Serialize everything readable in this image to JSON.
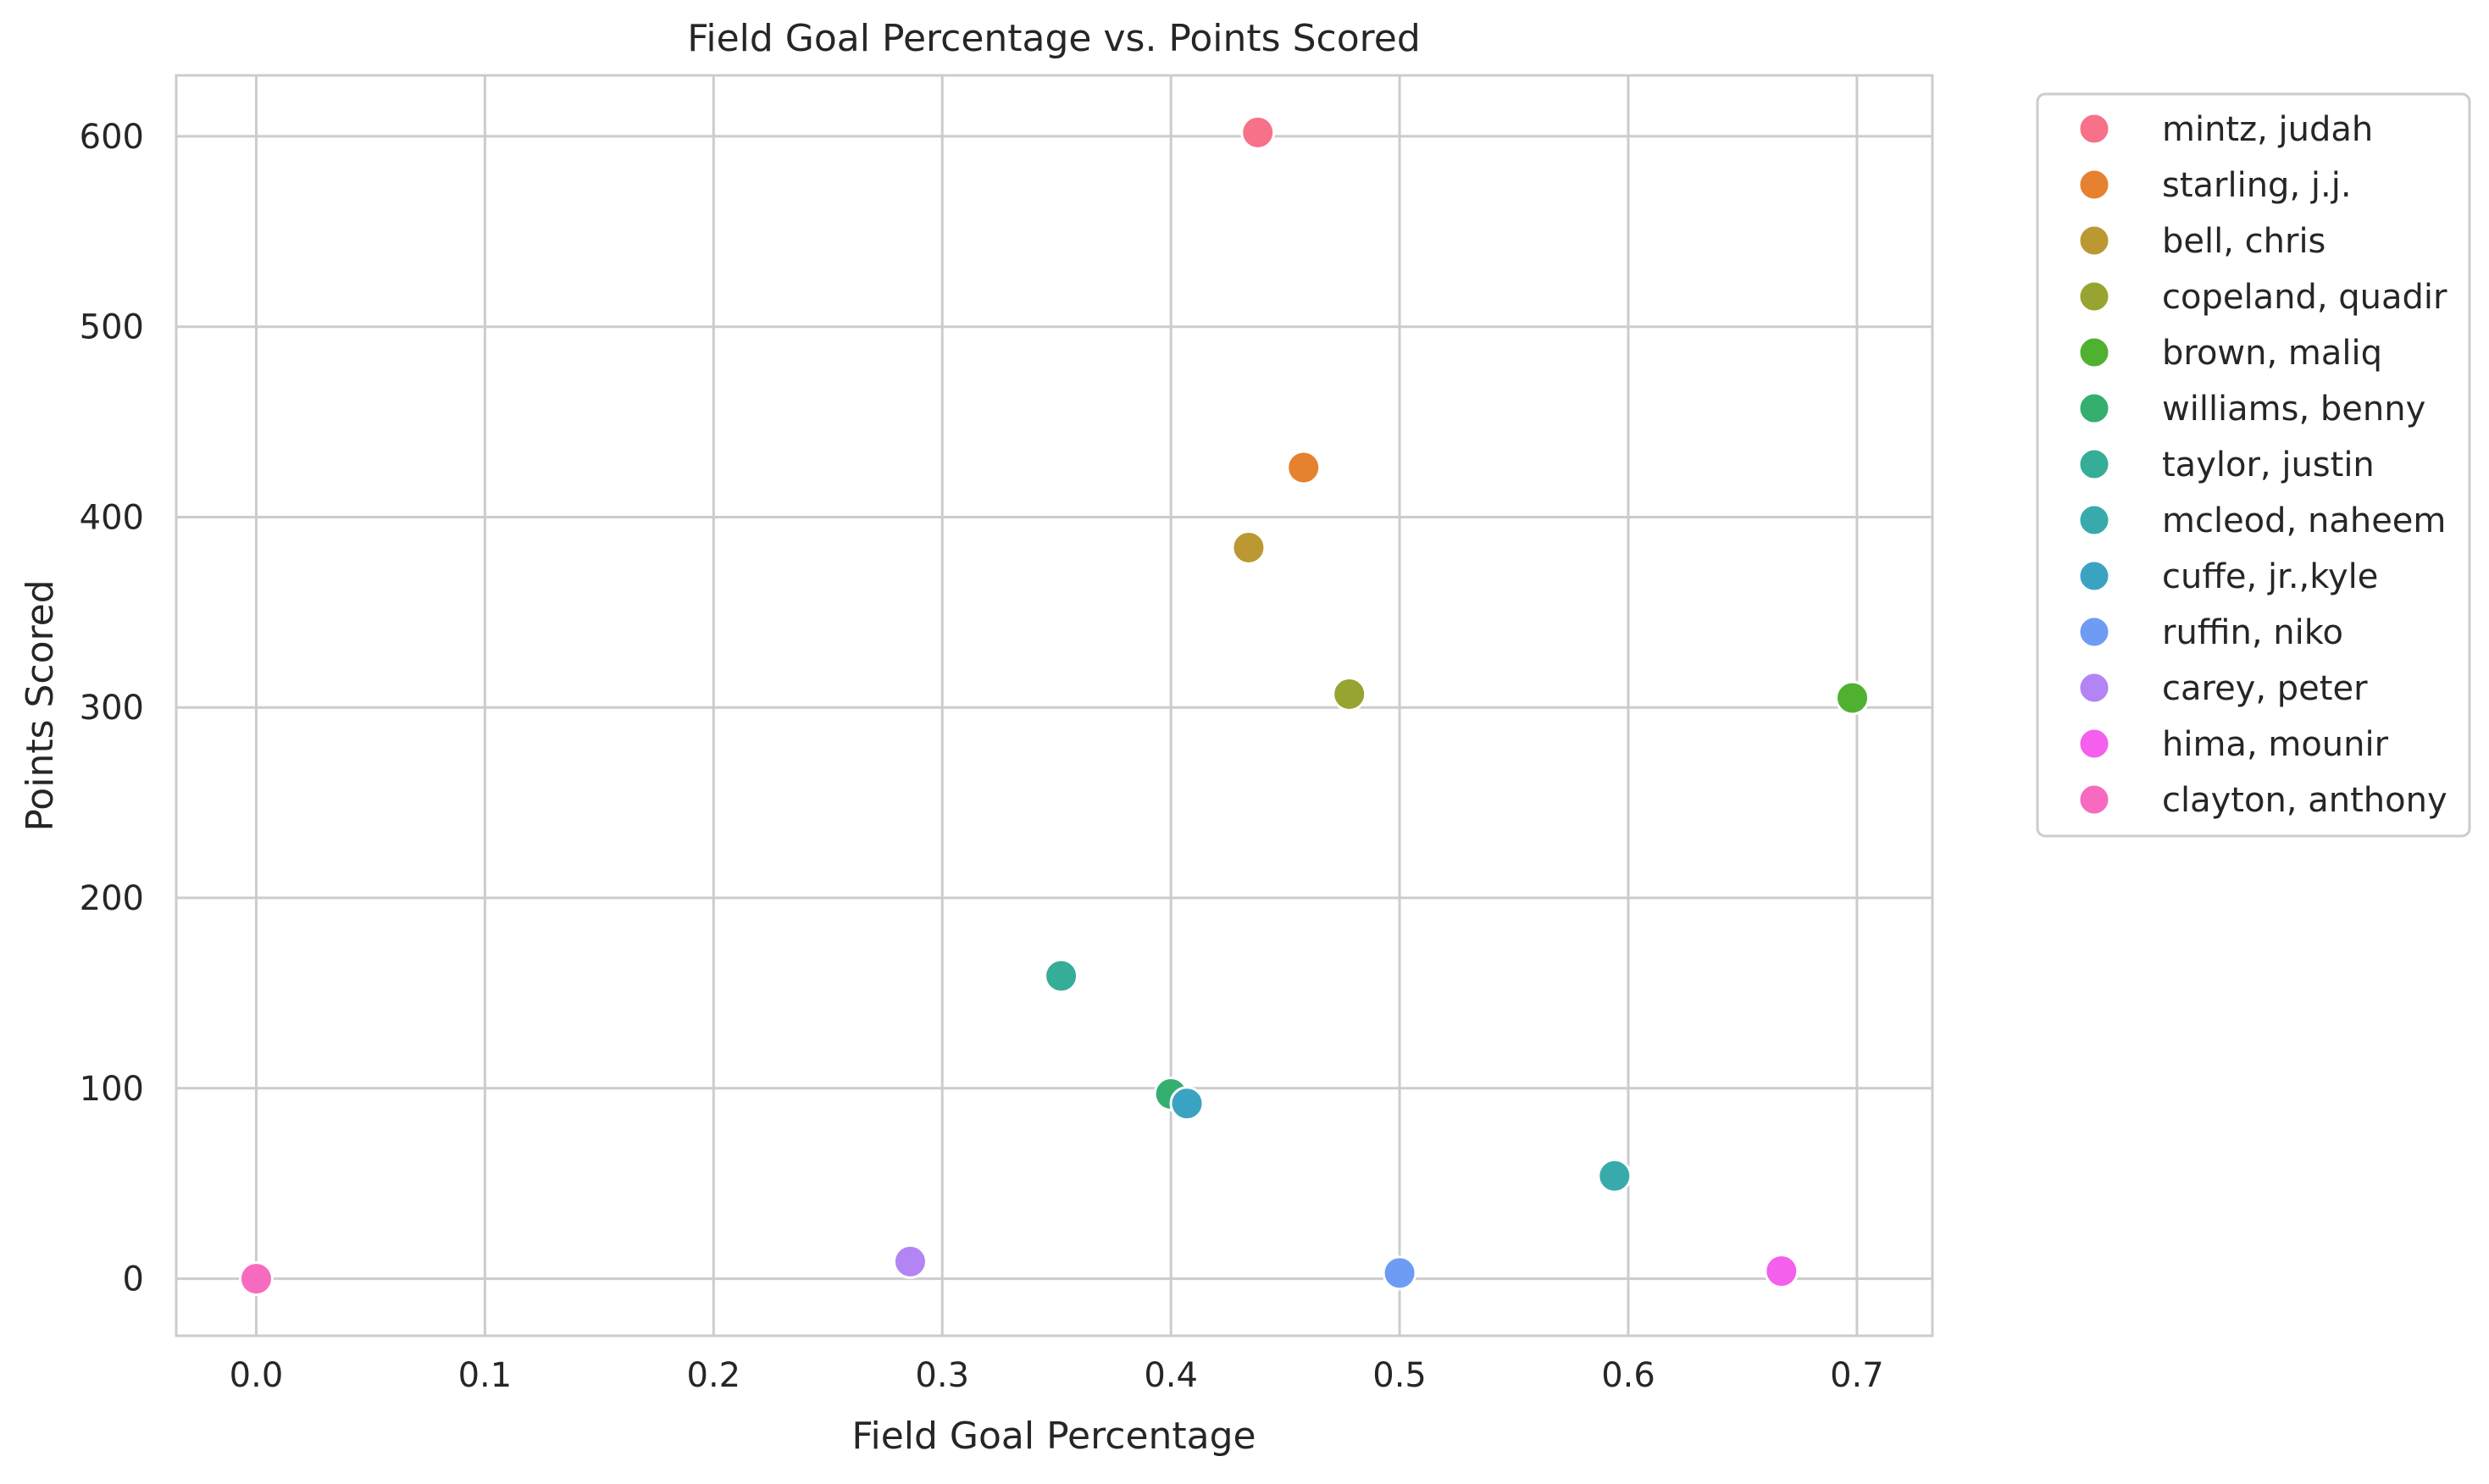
{
  "chart_data": {
    "type": "scatter",
    "title": "Field Goal Percentage vs. Points Scored",
    "xlabel": "Field Goal Percentage",
    "ylabel": "Points Scored",
    "xlim": [
      -0.035,
      0.733
    ],
    "ylim": [
      -30,
      632
    ],
    "x_ticks": [
      0.0,
      0.1,
      0.2,
      0.3,
      0.4,
      0.5,
      0.6,
      0.7
    ],
    "x_tick_labels": [
      "0.0",
      "0.1",
      "0.2",
      "0.3",
      "0.4",
      "0.5",
      "0.6",
      "0.7"
    ],
    "y_ticks": [
      0,
      100,
      200,
      300,
      400,
      500,
      600
    ],
    "y_tick_labels": [
      "0",
      "100",
      "200",
      "300",
      "400",
      "500",
      "600"
    ],
    "grid": true,
    "legend_position": "outside-right-top",
    "series": [
      {
        "name": "mintz, judah",
        "color": "#f77189",
        "x": 0.438,
        "y": 602
      },
      {
        "name": "starling, j.j.",
        "color": "#e5812f",
        "x": 0.458,
        "y": 426
      },
      {
        "name": "bell, chris",
        "color": "#bb9832",
        "x": 0.434,
        "y": 384
      },
      {
        "name": "copeland, quadir",
        "color": "#97a431",
        "x": 0.478,
        "y": 307
      },
      {
        "name": "brown, maliq",
        "color": "#50b131",
        "x": 0.698,
        "y": 305
      },
      {
        "name": "williams, benny",
        "color": "#34af6f",
        "x": 0.4,
        "y": 97
      },
      {
        "name": "taylor, justin",
        "color": "#36ad97",
        "x": 0.352,
        "y": 159
      },
      {
        "name": "mcleod, naheem",
        "color": "#38aaac",
        "x": 0.594,
        "y": 54
      },
      {
        "name": "cuffe, jr.,kyle",
        "color": "#3ba3c2",
        "x": 0.407,
        "y": 92
      },
      {
        "name": "ruffin, niko",
        "color": "#6e9bf4",
        "x": 0.5,
        "y": 3
      },
      {
        "name": "carey, peter",
        "color": "#b284f4",
        "x": 0.286,
        "y": 9
      },
      {
        "name": "hima, mounir",
        "color": "#f45fee",
        "x": 0.667,
        "y": 4
      },
      {
        "name": "clayton, anthony",
        "color": "#f66bbf",
        "x": 0.0,
        "y": 0
      }
    ]
  }
}
